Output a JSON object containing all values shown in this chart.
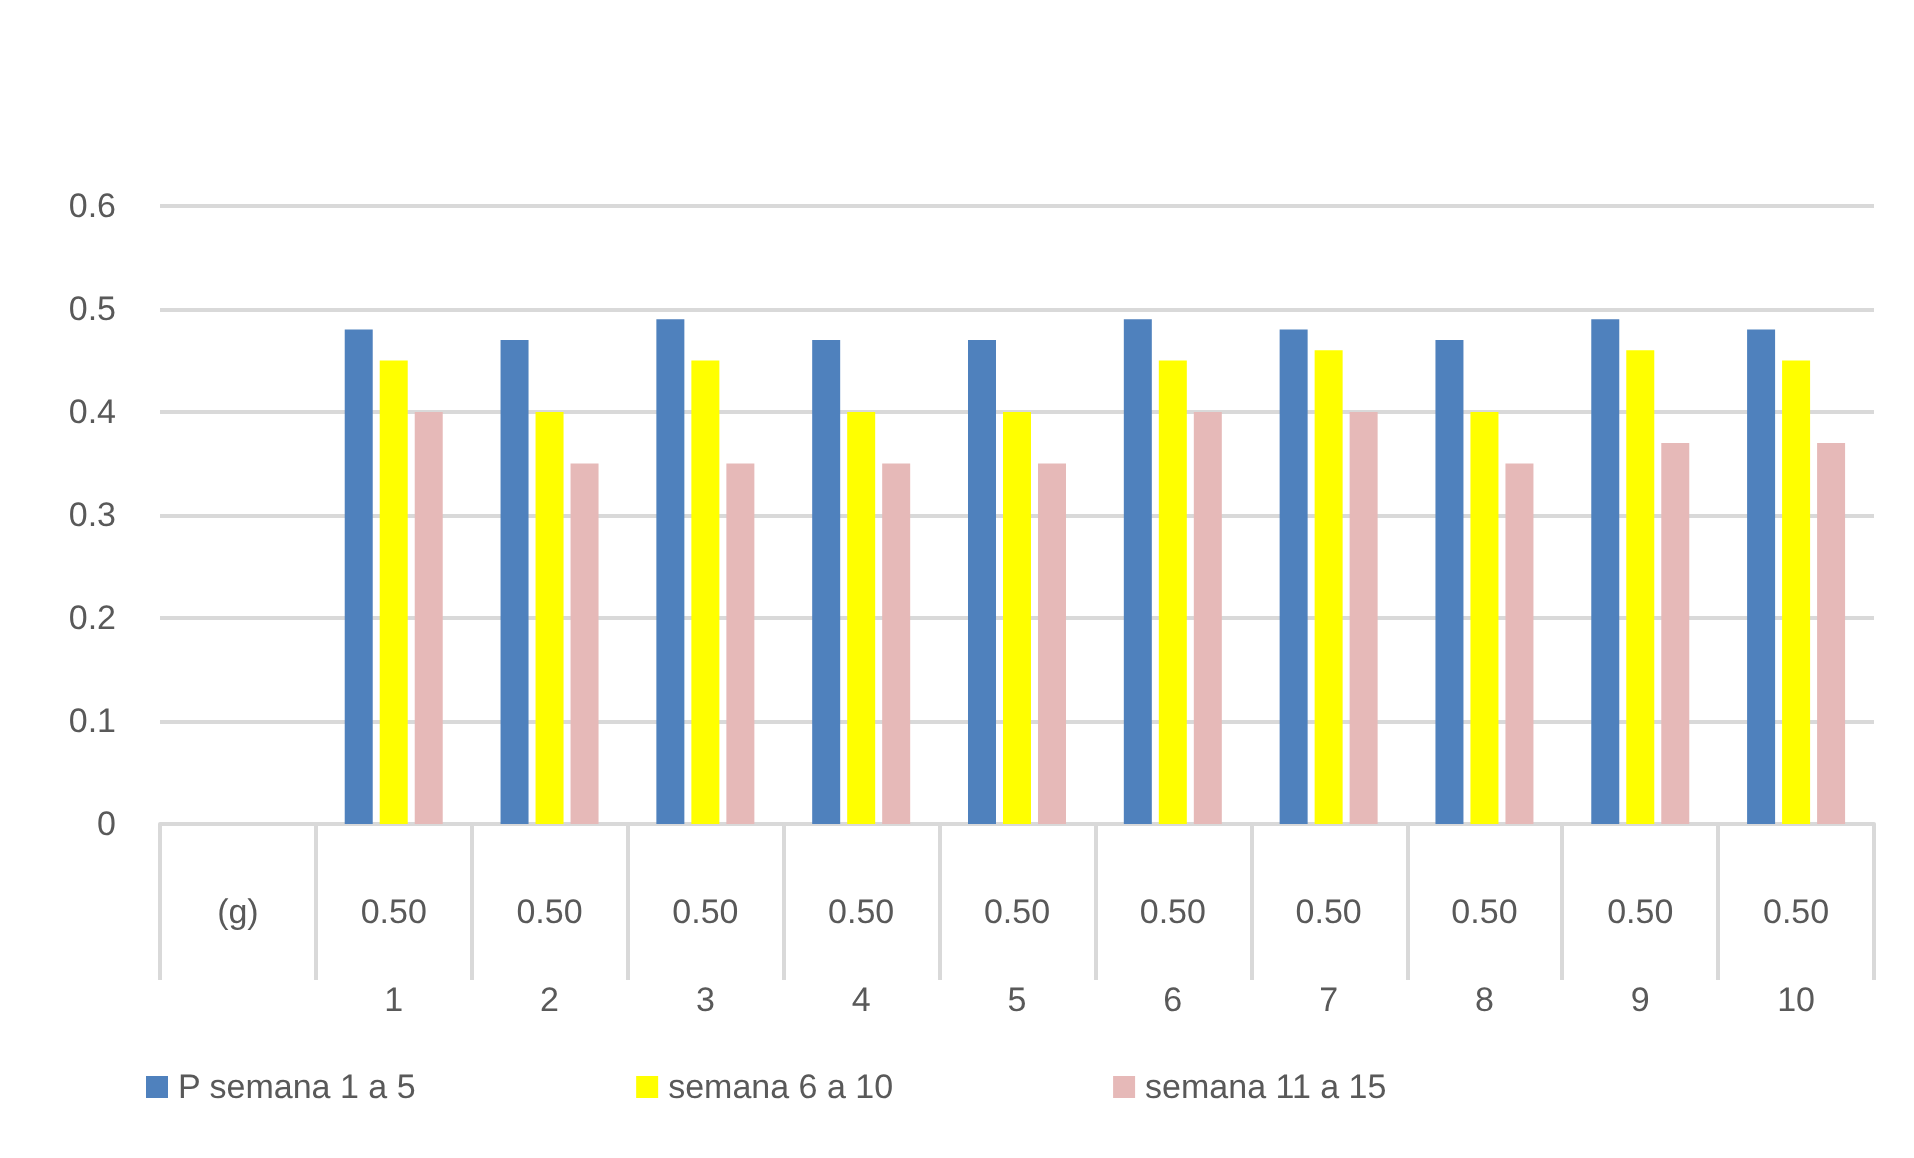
{
  "chart_data": {
    "type": "bar",
    "categories": [
      "(g)",
      "0.50\n1",
      "0.50\n2",
      "0.50\n3",
      "0.50\n4",
      "0.50\n5",
      "0.50\n6",
      "0.50\n7",
      "0.50\n8",
      "0.50\n9",
      "0.50\n10"
    ],
    "series": [
      {
        "name": "P semana 1 a 5",
        "color": "#4f81bd",
        "values": [
          null,
          0.48,
          0.47,
          0.49,
          0.47,
          0.47,
          0.49,
          0.48,
          0.47,
          0.49,
          0.48
        ]
      },
      {
        "name": "semana 6 a 10",
        "color": "#ffff00",
        "values": [
          null,
          0.45,
          0.4,
          0.45,
          0.4,
          0.4,
          0.45,
          0.46,
          0.4,
          0.46,
          0.45
        ]
      },
      {
        "name": "semana 11 a 15",
        "color": "#e6b9b8",
        "values": [
          null,
          0.4,
          0.35,
          0.35,
          0.35,
          0.35,
          0.4,
          0.4,
          0.35,
          0.37,
          0.37
        ]
      }
    ],
    "ylim": [
      0,
      0.6
    ],
    "yticks": [
      0,
      0.1,
      0.2,
      0.3,
      0.4,
      0.5,
      0.6
    ],
    "grid": "y",
    "legend": "bottom left"
  }
}
